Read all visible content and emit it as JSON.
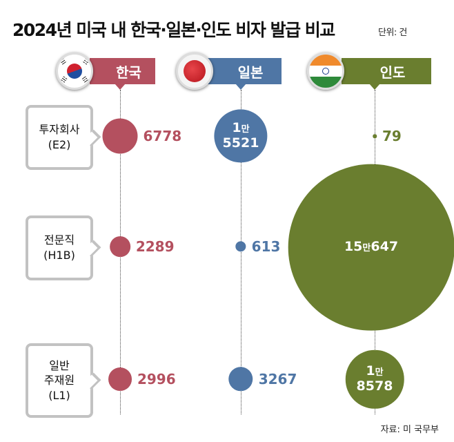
{
  "title": "2024년 미국 내 한국·일본·인도 비자 발급 비교",
  "unit": "단위: 건",
  "source": "자료: 미 국무부",
  "countries": [
    {
      "name": "한국",
      "flag": "korea-flag",
      "color": "#b4505f"
    },
    {
      "name": "일본",
      "flag": "japan-flag",
      "color": "#4f76a5"
    },
    {
      "name": "인도",
      "flag": "india-flag",
      "color": "#6a7e2f"
    }
  ],
  "rows": [
    {
      "lines": [
        "투자회사",
        "(E2)"
      ]
    },
    {
      "lines": [
        "전문직",
        "(H1B)"
      ]
    },
    {
      "lines": [
        "일반",
        "주재원",
        "(L1)"
      ]
    }
  ],
  "chart_data": {
    "type": "bubble",
    "title": "2024년 미국 내 한국·일본·인도 비자 발급 비교",
    "unit": "건",
    "categories": [
      "투자회사(E2)",
      "전문직(H1B)",
      "일반 주재원(L1)"
    ],
    "series": [
      {
        "name": "한국",
        "values": [
          6778,
          2289,
          2996
        ],
        "labels": [
          "6778",
          "2289",
          "2996"
        ]
      },
      {
        "name": "일본",
        "values": [
          15521,
          613,
          3267
        ],
        "labels": [
          "1만 5521",
          "613",
          "3267"
        ]
      },
      {
        "name": "인도",
        "values": [
          79,
          150647,
          18578
        ],
        "labels": [
          "79",
          "15만647",
          "1만 8578"
        ]
      }
    ]
  }
}
